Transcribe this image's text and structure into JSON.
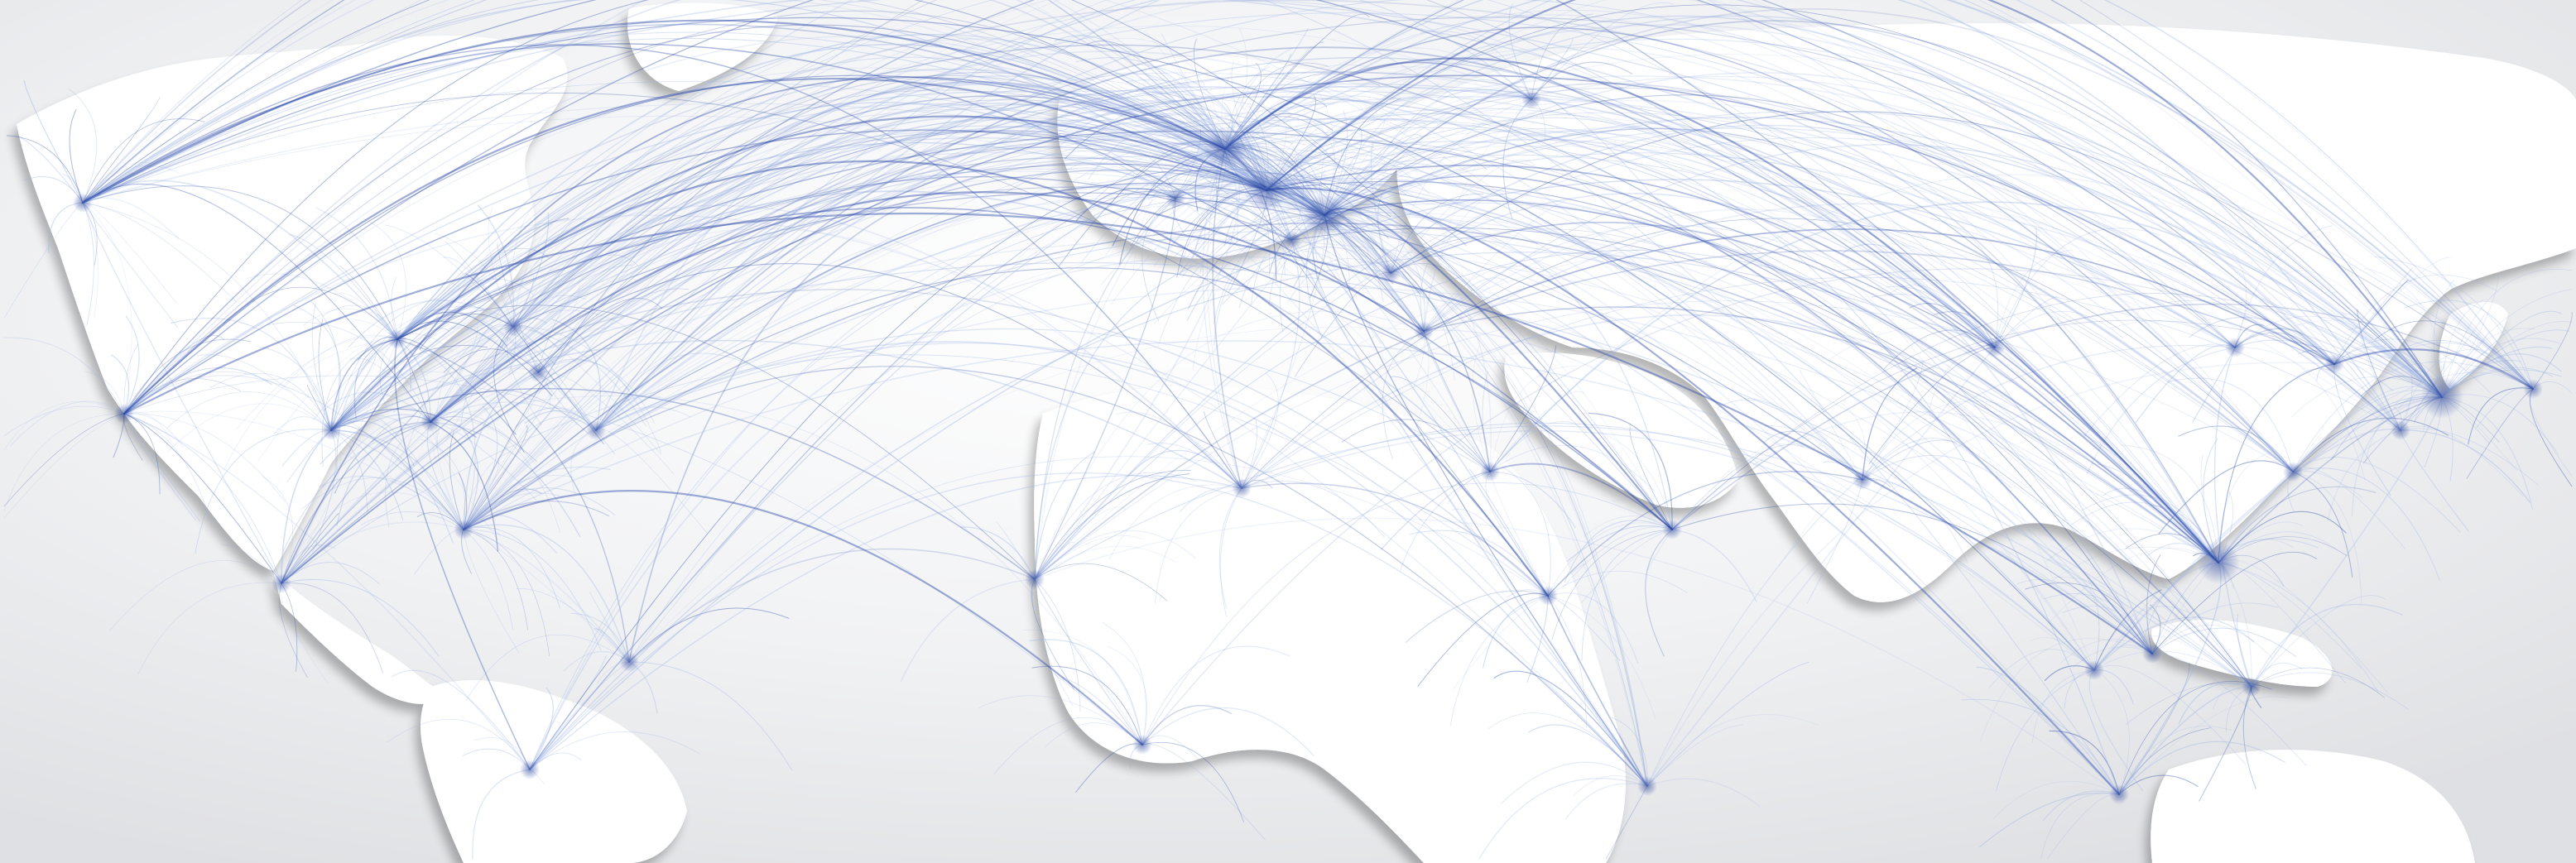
{
  "map": {
    "kind": "world-flight-routes",
    "labels": [],
    "colors": {
      "background": "#e9eaec",
      "background_light": "#f6f6f7",
      "land": "#ffffff",
      "land_shadow": "#c9cbcf",
      "route_light": "#9db4e4",
      "route_dark": "#2b4aa8",
      "hub": "#1d3a96"
    },
    "regions_visible": [
      "north-america",
      "central-america",
      "south-america",
      "europe",
      "africa",
      "middle-east",
      "asia",
      "oceania"
    ]
  }
}
